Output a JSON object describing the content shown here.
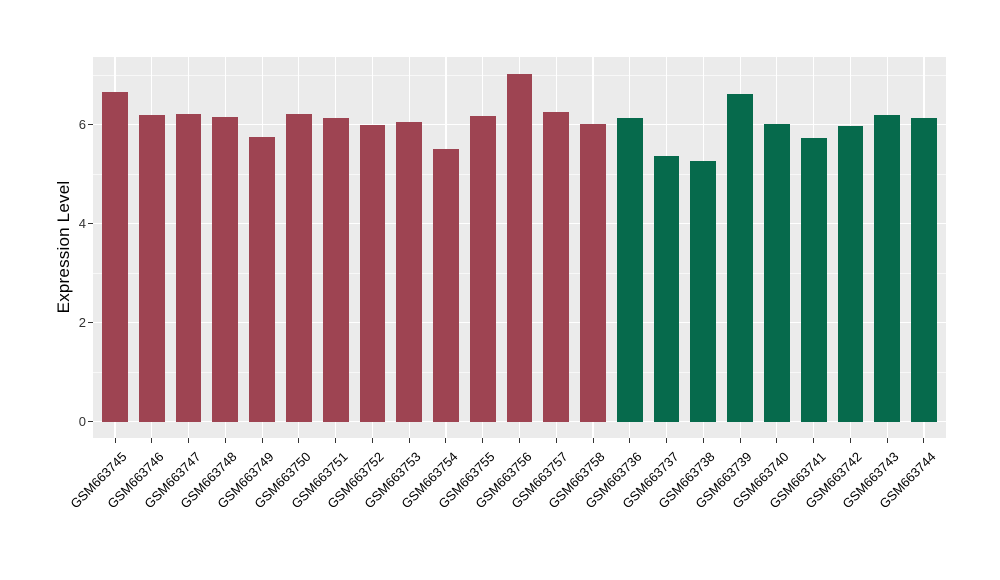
{
  "chart_data": {
    "type": "bar",
    "title": "",
    "xlabel": "",
    "ylabel": "Expression Level",
    "categories": [
      "GSM663745",
      "GSM663746",
      "GSM663747",
      "GSM663748",
      "GSM663749",
      "GSM663750",
      "GSM663751",
      "GSM663752",
      "GSM663753",
      "GSM663754",
      "GSM663755",
      "GSM663756",
      "GSM663757",
      "GSM663758",
      "GSM663736",
      "GSM663737",
      "GSM663738",
      "GSM663739",
      "GSM663740",
      "GSM663741",
      "GSM663742",
      "GSM663743",
      "GSM663744"
    ],
    "values": [
      6.65,
      6.2,
      6.21,
      6.15,
      5.74,
      6.22,
      6.13,
      5.99,
      6.05,
      5.51,
      6.17,
      7.03,
      6.25,
      6.02,
      6.13,
      5.36,
      5.27,
      6.61,
      6.02,
      5.72,
      5.97,
      6.19,
      6.13
    ],
    "groups": [
      "group1",
      "group1",
      "group1",
      "group1",
      "group1",
      "group1",
      "group1",
      "group1",
      "group1",
      "group1",
      "group1",
      "group1",
      "group1",
      "group1",
      "group2",
      "group2",
      "group2",
      "group2",
      "group2",
      "group2",
      "group2",
      "group2",
      "group2"
    ],
    "group_colors": {
      "group1": "#9E4452",
      "group2": "#066A4C"
    },
    "ylim": [
      -0.33,
      7.37
    ],
    "yticks": [
      0,
      2,
      4,
      6
    ],
    "minor_yticks": [
      1,
      3,
      5,
      7
    ],
    "grid": "on",
    "legend_position": "none",
    "panel_background": "#EBEBEB",
    "grid_color": "#FFFFFF",
    "tick_label_color": "#333333",
    "axis_title_color": "#000000"
  }
}
